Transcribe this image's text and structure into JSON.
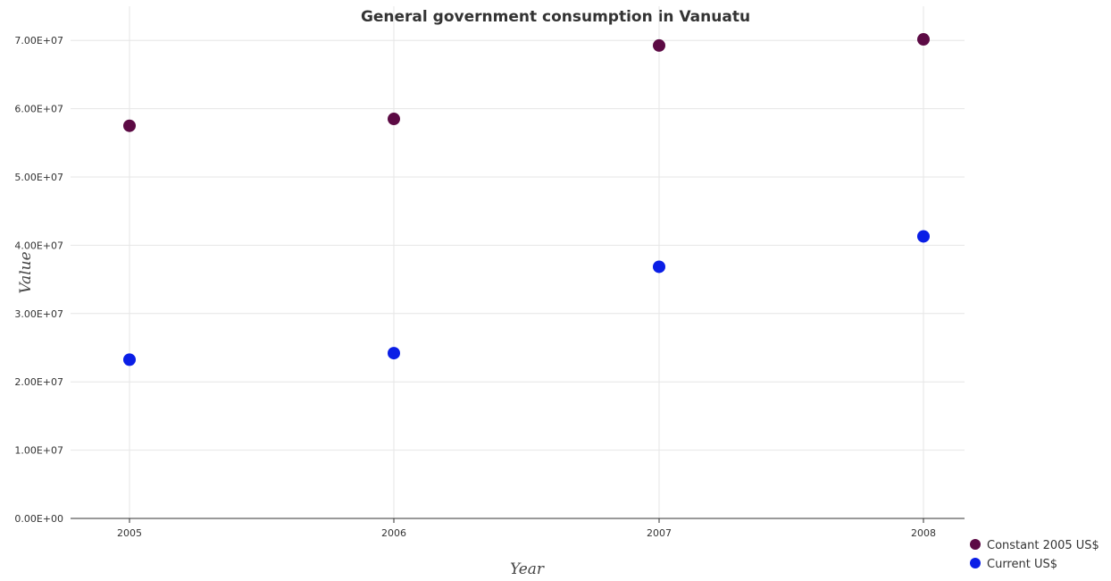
{
  "chart_data": {
    "type": "scatter",
    "title": "General government consumption in Vanuatu",
    "xlabel": "Year",
    "ylabel": "Value",
    "categories": [
      "2005",
      "2006",
      "2007",
      "2008"
    ],
    "ylim": [
      0,
      75000000
    ],
    "yticks": [
      "0.00E+00",
      "1.00E+07",
      "2.00E+07",
      "3.00E+07",
      "4.00E+07",
      "5.00E+07",
      "6.00E+07",
      "7.00E+07"
    ],
    "ytick_values": [
      0,
      10000000,
      20000000,
      30000000,
      40000000,
      50000000,
      60000000,
      70000000
    ],
    "grid": true,
    "legend_position": "bottom-right",
    "series": [
      {
        "name": "Constant 2005 US$",
        "color": "#5c0a44",
        "values": [
          57500000,
          58500000,
          69250000,
          70150000
        ]
      },
      {
        "name": "Current US$",
        "color": "#0a1ee6",
        "values": [
          23250000,
          24200000,
          36850000,
          41300000
        ]
      }
    ]
  }
}
